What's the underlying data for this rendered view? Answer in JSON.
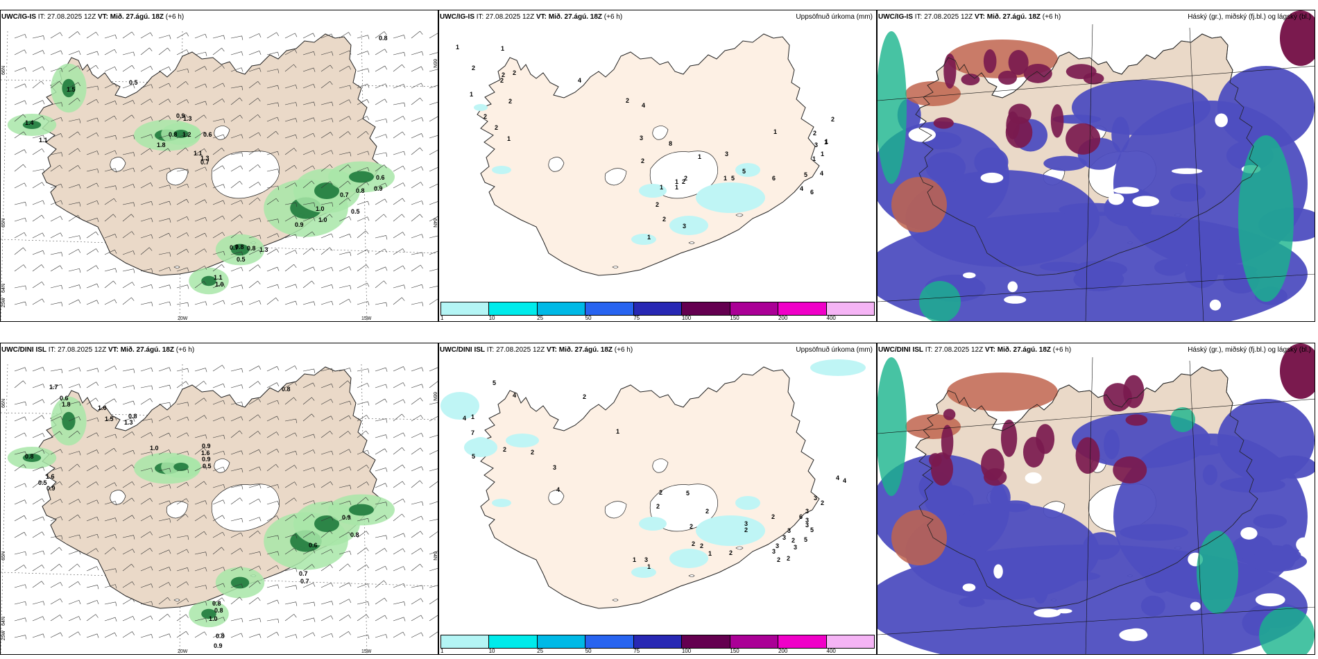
{
  "panels": [
    {
      "model": "UWC/IG-IS",
      "it_label": "IT:",
      "it": "27.08.2025 12Z",
      "vt_label": "VT:",
      "vt": "Mið. 27.ágú. 18Z",
      "lead": "(+6 h)",
      "title": "",
      "axis": {
        "lat_left": [
          "66N",
          "65N",
          "64N"
        ],
        "lat_right": [
          "66N",
          "64N"
        ],
        "lon": [
          "20W",
          "15W"
        ],
        "corner": "25W"
      },
      "labels": [
        "1.5",
        "0.5",
        "1.4",
        "1.1",
        "0.9",
        "1.3",
        "0.6",
        "1.8",
        "0.8",
        "1.2",
        "1.1",
        "1.3",
        "0.7",
        "0.7",
        "0.8",
        "0.9",
        "0.6",
        "0.5",
        "1.0",
        "1.0",
        "0.9",
        "0.8",
        "0.8",
        "1.3",
        "0.7",
        "0.5",
        "1.1",
        "1.0",
        "0.8"
      ]
    },
    {
      "model": "UWC/IG-IS",
      "it_label": "IT:",
      "it": "27.08.2025 12Z",
      "vt_label": "VT:",
      "vt": "Mið. 27.ágú. 18Z",
      "lead": "(+6 h)",
      "title": "Uppsöfnuð úrkoma (mm)",
      "labels": [
        "1",
        "1",
        "2",
        "2",
        "2",
        "2",
        "1",
        "2",
        "2",
        "2",
        "1",
        "4",
        "2",
        "4",
        "3",
        "2",
        "8",
        "1",
        "2",
        "1",
        "1",
        "1",
        "2",
        "2",
        "3",
        "2",
        "1",
        "1",
        "3",
        "5",
        "5",
        "6",
        "1",
        "4",
        "6",
        "4",
        "5",
        "2",
        "3",
        "1",
        "1",
        "1",
        "1",
        "2"
      ]
    },
    {
      "model": "UWC/IG-IS",
      "it_label": "IT:",
      "it": "27.08.2025 12Z",
      "vt_label": "VT:",
      "vt": "Mið. 27.ágú. 18Z",
      "lead": "(+6 h)",
      "title": "Háský (gr.), miðský (fj.bl.) og lágský (bl.)"
    },
    {
      "model": "UWC/DINI ISL",
      "it_label": "IT:",
      "it": "27.08.2025 12Z",
      "vt_label": "VT:",
      "vt": "Mið. 27.ágú. 18Z",
      "lead": "(+6 h)",
      "title": "",
      "axis": {
        "lat_left": [
          "66N",
          "65N",
          "64N"
        ],
        "lat_right": [
          "66N",
          "64N"
        ],
        "lon": [
          "20W",
          "15W"
        ],
        "corner": "25W"
      },
      "labels": [
        "1.7",
        "0.6",
        "1.8",
        "1.6",
        "1.5",
        "1.3",
        "0.8",
        "1.0",
        "0.9",
        "0.8",
        "1.6",
        "0.9",
        "0.5",
        "0.8",
        "1.6",
        "0.9",
        "0.5",
        "0.9",
        "0.8",
        "0.6",
        "0.7",
        "0.7",
        "0.8",
        "0.9",
        "0.8",
        "0.8",
        "1.0"
      ]
    },
    {
      "model": "UWC/DINI ISL",
      "it_label": "IT:",
      "it": "27.08.2025 12Z",
      "vt_label": "VT:",
      "vt": "Mið. 27.ágú. 18Z",
      "lead": "(+6 h)",
      "title": "Uppsöfnuð úrkoma (mm)",
      "labels": [
        "5",
        "4",
        "4",
        "1",
        "7",
        "5",
        "2",
        "2",
        "3",
        "4",
        "2",
        "1",
        "2",
        "2",
        "5",
        "2",
        "1",
        "3",
        "1",
        "2",
        "2",
        "2",
        "1",
        "2",
        "3",
        "2",
        "2",
        "6",
        "3",
        "3",
        "5",
        "3",
        "3",
        "3",
        "3",
        "3",
        "2",
        "2",
        "2",
        "3",
        "5",
        "3",
        "2",
        "4",
        "4"
      ]
    },
    {
      "model": "UWC/DINI ISL",
      "it_label": "IT:",
      "it": "27.08.2025 12Z",
      "vt_label": "VT:",
      "vt": "Mið. 27.ágú. 18Z",
      "lead": "(+6 h)",
      "title": "Háský (gr.), miðský (fj.bl.) og lágský (bl.)"
    }
  ],
  "colorbar": {
    "colors": [
      "#b4f5f5",
      "#00ebeb",
      "#00b9e6",
      "#2864f0",
      "#2828b4",
      "#640050",
      "#aa0096",
      "#f000c8",
      "#f5b4f5"
    ],
    "ticks": [
      "1",
      "10",
      "25",
      "50",
      "75",
      "100",
      "150",
      "200",
      "400"
    ]
  },
  "palette": {
    "land": "#ead9c8",
    "land_precip": "#fdf0e4",
    "precip_light": "#bff5f5",
    "green_light": "#a8e6a8",
    "green_dark": "#1e7a3c",
    "cloud_low": "#4e4ec0",
    "cloud_mid": "#7a1a4e",
    "cloud_mid_light": "#c0644e",
    "cloud_high": "#19b48c"
  }
}
